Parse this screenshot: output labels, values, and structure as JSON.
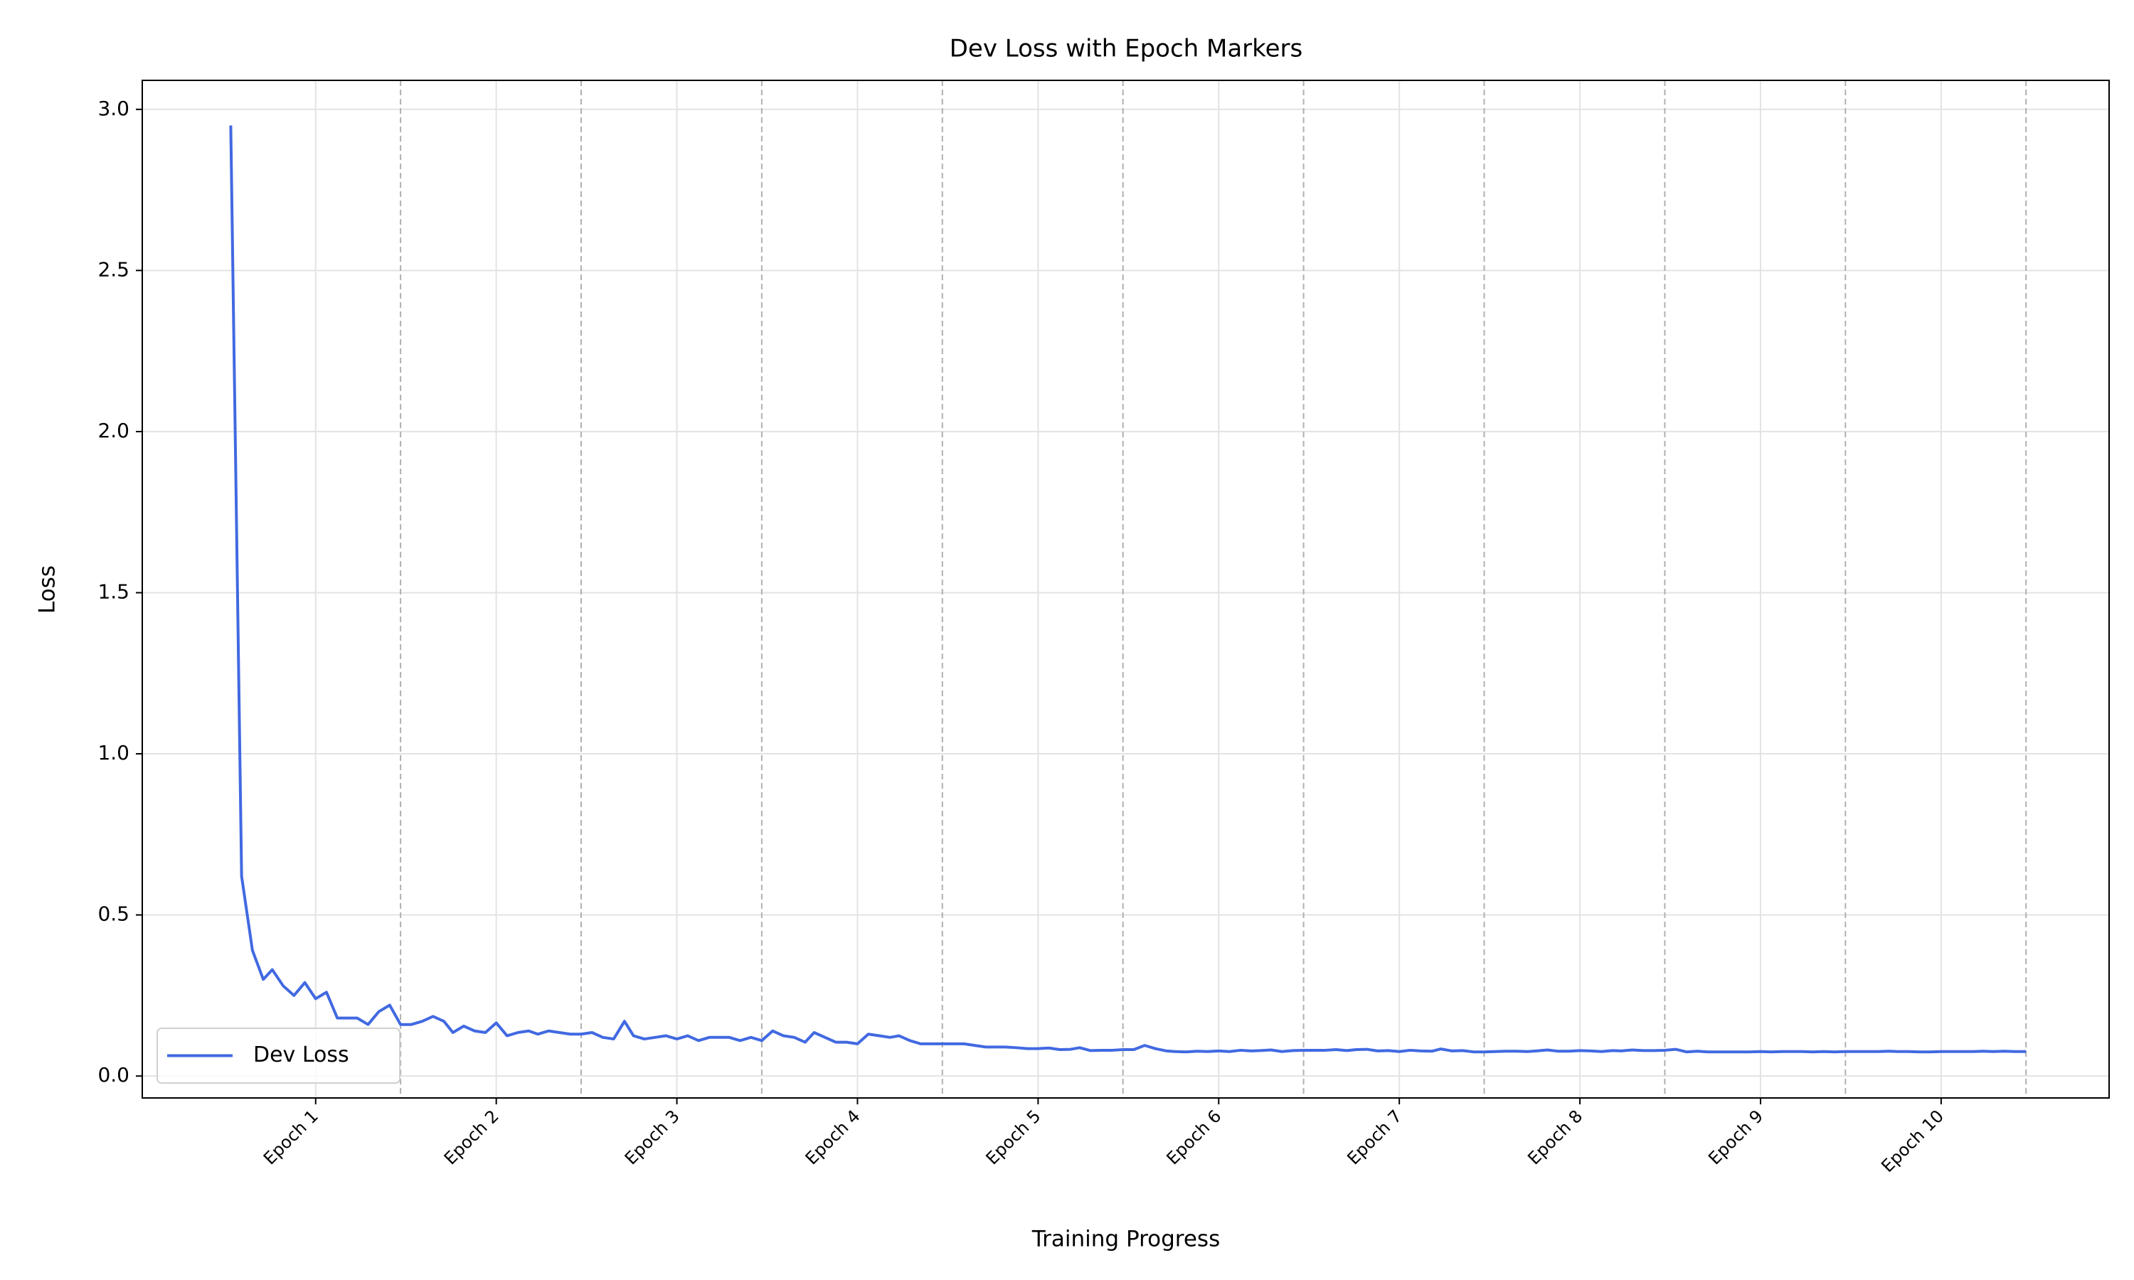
{
  "chart_data": {
    "type": "line",
    "title": "Dev Loss with Epoch Markers",
    "xlabel": "Training Progress",
    "ylabel": "Loss",
    "x": [
      0.53,
      0.59,
      0.65,
      0.71,
      0.76,
      0.82,
      0.88,
      0.94,
      1.0,
      1.06,
      1.12,
      1.18,
      1.23,
      1.29,
      1.35,
      1.41,
      1.47,
      1.53,
      1.59,
      1.65,
      1.71,
      1.76,
      1.82,
      1.88,
      1.94,
      2.0,
      2.06,
      2.12,
      2.18,
      2.23,
      2.29,
      2.35,
      2.41,
      2.47,
      2.53,
      2.59,
      2.65,
      2.71,
      2.76,
      2.82,
      2.88,
      2.94,
      3.0,
      3.06,
      3.12,
      3.18,
      3.23,
      3.29,
      3.35,
      3.41,
      3.47,
      3.53,
      3.59,
      3.65,
      3.71,
      3.76,
      3.82,
      3.88,
      3.94,
      4.0,
      4.06,
      4.12,
      4.18,
      4.23,
      4.29,
      4.35,
      4.41,
      4.47,
      4.53,
      4.59,
      4.65,
      4.71,
      4.76,
      4.82,
      4.88,
      4.94,
      5.0,
      5.06,
      5.12,
      5.18,
      5.23,
      5.29,
      5.35,
      5.41,
      5.47,
      5.53,
      5.59,
      5.65,
      5.71,
      5.76,
      5.82,
      5.88,
      5.94,
      6.0,
      6.06,
      6.12,
      6.18,
      6.23,
      6.29,
      6.35,
      6.41,
      6.47,
      6.53,
      6.59,
      6.65,
      6.71,
      6.76,
      6.82,
      6.88,
      6.94,
      7.0,
      7.06,
      7.12,
      7.18,
      7.23,
      7.29,
      7.35,
      7.41,
      7.47,
      7.53,
      7.59,
      7.65,
      7.71,
      7.76,
      7.82,
      7.88,
      7.94,
      8.0,
      8.06,
      8.12,
      8.18,
      8.23,
      8.29,
      8.35,
      8.41,
      8.47,
      8.53,
      8.59,
      8.65,
      8.71,
      8.76,
      8.82,
      8.88,
      8.94,
      9.0,
      9.06,
      9.12,
      9.18,
      9.23,
      9.29,
      9.35,
      9.41,
      9.47,
      9.53,
      9.59,
      9.65,
      9.71,
      9.76,
      9.82,
      9.88,
      9.94,
      10.0,
      10.06,
      10.12,
      10.18,
      10.23,
      10.29,
      10.35,
      10.41,
      10.47
    ],
    "series": [
      {
        "name": "Dev Loss",
        "color": "#4169e1",
        "values": [
          2.95,
          0.62,
          0.39,
          0.3,
          0.33,
          0.28,
          0.25,
          0.29,
          0.24,
          0.26,
          0.18,
          0.18,
          0.18,
          0.16,
          0.2,
          0.22,
          0.16,
          0.16,
          0.17,
          0.185,
          0.17,
          0.135,
          0.155,
          0.14,
          0.135,
          0.165,
          0.125,
          0.135,
          0.14,
          0.13,
          0.14,
          0.135,
          0.13,
          0.13,
          0.135,
          0.12,
          0.115,
          0.17,
          0.125,
          0.115,
          0.12,
          0.125,
          0.115,
          0.125,
          0.11,
          0.12,
          0.12,
          0.12,
          0.11,
          0.12,
          0.11,
          0.14,
          0.125,
          0.12,
          0.105,
          0.135,
          0.12,
          0.105,
          0.105,
          0.1,
          0.13,
          0.125,
          0.12,
          0.125,
          0.11,
          0.1,
          0.1,
          0.1,
          0.1,
          0.1,
          0.095,
          0.09,
          0.09,
          0.09,
          0.088,
          0.085,
          0.085,
          0.087,
          0.082,
          0.083,
          0.088,
          0.079,
          0.08,
          0.08,
          0.082,
          0.082,
          0.095,
          0.085,
          0.078,
          0.076,
          0.075,
          0.077,
          0.076,
          0.078,
          0.076,
          0.08,
          0.078,
          0.079,
          0.081,
          0.076,
          0.079,
          0.08,
          0.08,
          0.08,
          0.082,
          0.079,
          0.082,
          0.083,
          0.078,
          0.079,
          0.076,
          0.08,
          0.078,
          0.077,
          0.084,
          0.078,
          0.079,
          0.075,
          0.075,
          0.076,
          0.077,
          0.077,
          0.076,
          0.078,
          0.081,
          0.077,
          0.077,
          0.079,
          0.078,
          0.076,
          0.079,
          0.078,
          0.081,
          0.079,
          0.079,
          0.08,
          0.083,
          0.075,
          0.077,
          0.075,
          0.075,
          0.075,
          0.075,
          0.075,
          0.076,
          0.075,
          0.076,
          0.076,
          0.076,
          0.075,
          0.076,
          0.075,
          0.076,
          0.076,
          0.076,
          0.076,
          0.077,
          0.076,
          0.076,
          0.075,
          0.075,
          0.076,
          0.076,
          0.076,
          0.076,
          0.077,
          0.076,
          0.077,
          0.076,
          0.076
        ]
      }
    ],
    "epoch_lines": [
      1.47,
      2.47,
      3.47,
      4.47,
      5.47,
      6.47,
      7.47,
      8.47,
      9.47,
      10.47
    ],
    "xlim": [
      0.04,
      10.93
    ],
    "ylim": [
      -0.068,
      3.09
    ],
    "xticks": [
      {
        "value": 1,
        "label": "Epoch 1"
      },
      {
        "value": 2,
        "label": "Epoch 2"
      },
      {
        "value": 3,
        "label": "Epoch 3"
      },
      {
        "value": 4,
        "label": "Epoch 4"
      },
      {
        "value": 5,
        "label": "Epoch 5"
      },
      {
        "value": 6,
        "label": "Epoch 6"
      },
      {
        "value": 7,
        "label": "Epoch 7"
      },
      {
        "value": 8,
        "label": "Epoch 8"
      },
      {
        "value": 9,
        "label": "Epoch 9"
      },
      {
        "value": 10,
        "label": "Epoch 10"
      }
    ],
    "yticks": [
      {
        "value": 0,
        "label": "0.0"
      },
      {
        "value": 0.5,
        "label": "0.5"
      },
      {
        "value": 1,
        "label": "1.0"
      },
      {
        "value": 1.5,
        "label": "1.5"
      },
      {
        "value": 2,
        "label": "2.0"
      },
      {
        "value": 2.5,
        "label": "2.5"
      },
      {
        "value": 3,
        "label": "3.0"
      }
    ],
    "grid": true,
    "legend": "lower left"
  }
}
